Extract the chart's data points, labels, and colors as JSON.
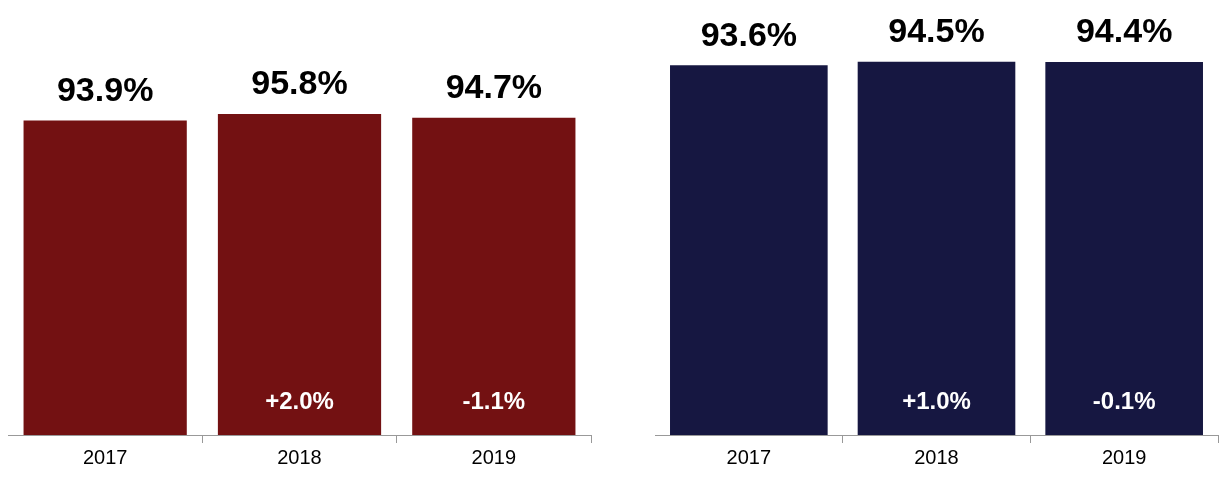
{
  "chart_data": [
    {
      "type": "bar",
      "categories": [
        "2017",
        "2018",
        "2019"
      ],
      "series": [
        {
          "color": "#731112",
          "values": [
            93.9,
            95.8,
            94.7
          ],
          "value_labels": [
            "93.9%",
            "95.8%",
            "94.7%"
          ]
        }
      ],
      "annotations": [
        "+2.0%",
        "-1.1%"
      ],
      "tick_labels": "x",
      "grid": false,
      "legend": false
    },
    {
      "type": "bar",
      "categories": [
        "2017",
        "2018",
        "2019"
      ],
      "series": [
        {
          "color": "#161741",
          "values": [
            93.6,
            94.5,
            94.4
          ],
          "value_labels": [
            "93.6%",
            "94.5%",
            "94.4%"
          ]
        }
      ],
      "annotations": [
        "+1.0%",
        "-0.1%"
      ],
      "tick_labels": "x",
      "grid": false,
      "legend": false
    }
  ]
}
